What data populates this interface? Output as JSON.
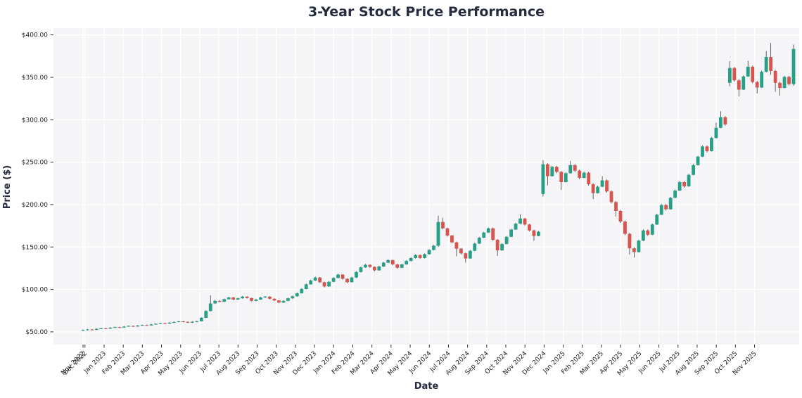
{
  "title": "3-Year Stock Price Performance",
  "axes": {
    "x_label": "Date",
    "y_label": "Price ($)",
    "y_tick_labels": [
      "$50.00",
      "$100.00",
      "$150.00",
      "$200.00",
      "$250.00",
      "$300.00",
      "$350.00",
      "$400.00"
    ],
    "y_tick_values": [
      50,
      100,
      150,
      200,
      250,
      300,
      350,
      400
    ],
    "x_tick_labels": [
      "Nov 2022",
      "Dec 2022",
      "Jan 2023",
      "Feb 2023",
      "Mar 2023",
      "Apr 2023",
      "May 2023",
      "Jun 2023",
      "Jul 2023",
      "Aug 2023",
      "Sep 2023",
      "Oct 2023",
      "Nov 2023",
      "Dec 2023",
      "Jan 2024",
      "Feb 2024",
      "Mar 2024",
      "Apr 2024",
      "May 2024",
      "Jun 2024",
      "Jul 2024",
      "Aug 2024",
      "Sep 2024",
      "Oct 2024",
      "Nov 2024",
      "Dec 2024",
      "Jan 2025",
      "Feb 2025",
      "Mar 2025",
      "Apr 2025",
      "May 2025",
      "Jun 2025",
      "Jul 2025",
      "Aug 2025",
      "Sep 2025",
      "Oct 2025",
      "Nov 2025"
    ]
  },
  "colors": {
    "up": "#26a086",
    "down": "#d9544e",
    "wick": "#3d3d3d",
    "plot_bg": "#f5f4f7",
    "grid": "#ffffff",
    "heading": "#262b3f",
    "tick_text": "#1c1c1c",
    "tick_mark": "#333333"
  },
  "chart_data": {
    "type": "candlestick",
    "title": "3-Year Stock Price Performance",
    "xlabel": "Date",
    "ylabel": "Price ($)",
    "interval": "weekly",
    "start": "2022-11-28",
    "ylim": [
      35,
      408
    ],
    "y_ticks": [
      50,
      100,
      150,
      200,
      250,
      300,
      350,
      400
    ],
    "ohlc_format": [
      "open",
      "high",
      "low",
      "close"
    ],
    "ohlc": [
      [
        51.5,
        52.8,
        50.9,
        52.0
      ],
      [
        52.0,
        53.4,
        51.6,
        52.8
      ],
      [
        52.8,
        53.2,
        51.7,
        52.3
      ],
      [
        52.3,
        54.1,
        52.0,
        53.5
      ],
      [
        53.5,
        54.8,
        53.1,
        54.2
      ],
      [
        54.2,
        54.7,
        53.2,
        53.8
      ],
      [
        53.8,
        55.5,
        53.5,
        54.9
      ],
      [
        54.9,
        56.2,
        54.5,
        55.6
      ],
      [
        55.6,
        56.0,
        54.5,
        55.1
      ],
      [
        55.1,
        56.8,
        54.8,
        56.2
      ],
      [
        56.2,
        57.6,
        55.9,
        57.0
      ],
      [
        57.0,
        57.4,
        55.8,
        56.3
      ],
      [
        56.3,
        58.0,
        56.0,
        57.4
      ],
      [
        57.4,
        58.7,
        57.0,
        58.1
      ],
      [
        58.1,
        58.5,
        57.0,
        57.5
      ],
      [
        57.5,
        59.3,
        57.2,
        58.7
      ],
      [
        58.7,
        60.1,
        58.3,
        59.5
      ],
      [
        59.5,
        60.8,
        59.1,
        60.2
      ],
      [
        60.2,
        60.7,
        59.2,
        59.7
      ],
      [
        59.7,
        61.4,
        59.4,
        60.8
      ],
      [
        60.8,
        62.2,
        60.4,
        61.6
      ],
      [
        61.6,
        62.9,
        61.2,
        62.3
      ],
      [
        62.3,
        62.8,
        61.3,
        61.8
      ],
      [
        61.8,
        62.2,
        60.3,
        60.9
      ],
      [
        60.9,
        62.5,
        60.5,
        61.9
      ],
      [
        61.9,
        63.1,
        61.4,
        62.5
      ],
      [
        62.5,
        67.3,
        62.2,
        66.5
      ],
      [
        66.5,
        75.4,
        66.1,
        74.5
      ],
      [
        74.5,
        93.0,
        74.0,
        83.5
      ],
      [
        83.5,
        87.6,
        82.9,
        86.5
      ],
      [
        86.5,
        87.1,
        84.8,
        85.5
      ],
      [
        85.5,
        89.3,
        85.1,
        88.5
      ],
      [
        88.5,
        91.3,
        88.0,
        90.5
      ],
      [
        90.5,
        91.0,
        87.3,
        88.0
      ],
      [
        88.0,
        90.3,
        87.5,
        89.5
      ],
      [
        89.5,
        92.3,
        89.1,
        91.5
      ],
      [
        91.5,
        92.0,
        89.2,
        89.8
      ],
      [
        89.8,
        90.2,
        85.8,
        86.5
      ],
      [
        86.5,
        88.8,
        86.1,
        88.0
      ],
      [
        88.0,
        91.2,
        87.6,
        90.5
      ],
      [
        90.5,
        92.2,
        90.0,
        91.5
      ],
      [
        91.5,
        92.0,
        88.4,
        89.0
      ],
      [
        89.0,
        89.5,
        86.3,
        87.0
      ],
      [
        87.0,
        87.5,
        83.8,
        84.5
      ],
      [
        84.5,
        87.2,
        84.0,
        86.5
      ],
      [
        86.5,
        90.2,
        86.1,
        89.5
      ],
      [
        89.5,
        92.7,
        89.0,
        92.0
      ],
      [
        92.0,
        96.3,
        91.5,
        95.5
      ],
      [
        95.5,
        101.3,
        95.0,
        100.5
      ],
      [
        100.5,
        106.9,
        100.0,
        106.0
      ],
      [
        106.0,
        111.4,
        105.5,
        110.5
      ],
      [
        110.5,
        115.0,
        110.0,
        114.0
      ],
      [
        114.0,
        114.6,
        107.6,
        108.5
      ],
      [
        108.5,
        109.1,
        102.4,
        103.5
      ],
      [
        103.5,
        109.9,
        103.0,
        109.0
      ],
      [
        109.0,
        114.4,
        108.5,
        113.5
      ],
      [
        113.5,
        118.5,
        113.0,
        117.5
      ],
      [
        117.5,
        118.1,
        111.5,
        112.5
      ],
      [
        112.5,
        113.1,
        107.4,
        108.5
      ],
      [
        108.5,
        114.9,
        108.0,
        114.0
      ],
      [
        114.0,
        121.4,
        113.5,
        120.5
      ],
      [
        120.5,
        126.9,
        120.0,
        126.0
      ],
      [
        126.0,
        130.0,
        125.5,
        129.0
      ],
      [
        129.0,
        129.6,
        125.4,
        126.5
      ],
      [
        126.5,
        127.1,
        121.4,
        122.5
      ],
      [
        122.5,
        127.9,
        122.0,
        127.0
      ],
      [
        127.0,
        132.4,
        126.5,
        131.5
      ],
      [
        131.5,
        135.5,
        131.0,
        134.5
      ],
      [
        134.5,
        135.1,
        128.4,
        129.5
      ],
      [
        129.5,
        130.1,
        124.4,
        125.5
      ],
      [
        125.5,
        130.4,
        125.0,
        129.5
      ],
      [
        129.5,
        134.4,
        129.0,
        133.5
      ],
      [
        133.5,
        137.9,
        133.0,
        137.0
      ],
      [
        137.0,
        141.4,
        136.5,
        140.5
      ],
      [
        140.5,
        141.1,
        135.9,
        137.0
      ],
      [
        137.0,
        142.4,
        136.5,
        141.5
      ],
      [
        141.5,
        147.4,
        141.0,
        146.5
      ],
      [
        146.5,
        152.4,
        146.0,
        151.5
      ],
      [
        151.5,
        187.0,
        150.0,
        179.5
      ],
      [
        179.5,
        184.5,
        170.8,
        172.0
      ],
      [
        172.0,
        172.8,
        162.3,
        163.5
      ],
      [
        163.5,
        164.3,
        154.3,
        155.5
      ],
      [
        155.5,
        156.3,
        139.0,
        148.0
      ],
      [
        148.0,
        148.8,
        141.2,
        142.5
      ],
      [
        142.5,
        143.3,
        131.5,
        136.5
      ],
      [
        136.5,
        146.4,
        136.0,
        145.5
      ],
      [
        145.5,
        154.9,
        145.0,
        154.0
      ],
      [
        154.0,
        161.9,
        153.5,
        161.0
      ],
      [
        161.0,
        168.0,
        160.5,
        167.0
      ],
      [
        167.0,
        173.0,
        166.5,
        172.0
      ],
      [
        172.0,
        172.9,
        157.3,
        158.5
      ],
      [
        158.5,
        159.4,
        139.5,
        146.0
      ],
      [
        146.0,
        154.4,
        145.5,
        153.5
      ],
      [
        153.5,
        163.0,
        153.0,
        162.0
      ],
      [
        162.0,
        171.5,
        161.5,
        170.5
      ],
      [
        170.5,
        178.5,
        170.0,
        177.5
      ],
      [
        177.5,
        188.5,
        177.0,
        183.5
      ],
      [
        183.5,
        184.4,
        175.3,
        176.5
      ],
      [
        176.5,
        177.4,
        168.3,
        169.5
      ],
      [
        169.5,
        170.4,
        157.5,
        163.0
      ],
      [
        163.0,
        169.0,
        162.5,
        168.0
      ],
      [
        212.5,
        252.5,
        209.5,
        247.5
      ],
      [
        247.5,
        248.7,
        223.0,
        233.5
      ],
      [
        233.5,
        245.7,
        233.0,
        244.5
      ],
      [
        244.5,
        245.7,
        236.9,
        238.5
      ],
      [
        238.5,
        239.7,
        217.5,
        226.5
      ],
      [
        226.5,
        238.2,
        226.0,
        237.0
      ],
      [
        237.0,
        251.5,
        236.5,
        246.5
      ],
      [
        246.5,
        247.7,
        238.4,
        240.0
      ],
      [
        240.0,
        241.2,
        229.9,
        231.5
      ],
      [
        231.5,
        238.7,
        231.0,
        237.5
      ],
      [
        237.5,
        238.7,
        222.4,
        224.0
      ],
      [
        224.0,
        225.2,
        206.5,
        213.5
      ],
      [
        213.5,
        222.2,
        213.0,
        221.0
      ],
      [
        221.0,
        233.5,
        220.5,
        228.5
      ],
      [
        228.5,
        229.7,
        214.0,
        215.5
      ],
      [
        215.5,
        216.7,
        201.4,
        203.0
      ],
      [
        203.0,
        204.2,
        186.0,
        192.5
      ],
      [
        192.5,
        193.7,
        178.4,
        180.0
      ],
      [
        180.0,
        181.2,
        163.9,
        165.5
      ],
      [
        165.5,
        166.7,
        141.0,
        148.5
      ],
      [
        148.5,
        149.7,
        137.5,
        144.0
      ],
      [
        144.0,
        158.7,
        143.5,
        157.5
      ],
      [
        157.5,
        170.7,
        157.0,
        169.5
      ],
      [
        169.5,
        170.7,
        163.0,
        164.5
      ],
      [
        164.5,
        177.7,
        164.0,
        176.5
      ],
      [
        176.5,
        189.2,
        176.0,
        188.0
      ],
      [
        188.0,
        200.7,
        187.5,
        199.5
      ],
      [
        199.5,
        200.7,
        193.0,
        194.5
      ],
      [
        194.5,
        209.2,
        194.0,
        208.0
      ],
      [
        208.0,
        217.7,
        207.5,
        216.5
      ],
      [
        216.5,
        227.7,
        216.0,
        226.5
      ],
      [
        226.5,
        227.7,
        220.0,
        221.5
      ],
      [
        221.5,
        236.2,
        221.0,
        235.0
      ],
      [
        235.0,
        247.7,
        234.5,
        246.5
      ],
      [
        246.5,
        257.7,
        246.0,
        256.5
      ],
      [
        256.5,
        269.7,
        256.0,
        268.5
      ],
      [
        268.5,
        269.7,
        261.5,
        263.0
      ],
      [
        263.0,
        279.7,
        262.5,
        278.5
      ],
      [
        278.5,
        296.5,
        278.0,
        290.5
      ],
      [
        290.5,
        310.0,
        290.0,
        303.0
      ],
      [
        303.0,
        304.2,
        292.9,
        294.5
      ],
      [
        343.5,
        369.0,
        339.5,
        361.0
      ],
      [
        361.0,
        362.2,
        344.9,
        346.5
      ],
      [
        346.5,
        347.7,
        327.5,
        335.5
      ],
      [
        335.5,
        352.2,
        335.0,
        351.0
      ],
      [
        351.0,
        369.5,
        350.5,
        362.5
      ],
      [
        362.5,
        363.7,
        342.9,
        344.5
      ],
      [
        344.5,
        345.7,
        331.0,
        338.0
      ],
      [
        338.0,
        357.7,
        337.5,
        356.5
      ],
      [
        356.5,
        381.0,
        356.0,
        374.0
      ],
      [
        374.0,
        390.5,
        353.0,
        357.5
      ],
      [
        357.5,
        358.7,
        333.0,
        343.5
      ],
      [
        343.5,
        344.7,
        328.5,
        337.5
      ],
      [
        337.5,
        351.7,
        337.0,
        350.5
      ],
      [
        350.5,
        351.7,
        340.3,
        342.0
      ],
      [
        342.0,
        388.5,
        340.0,
        383.5
      ]
    ]
  }
}
